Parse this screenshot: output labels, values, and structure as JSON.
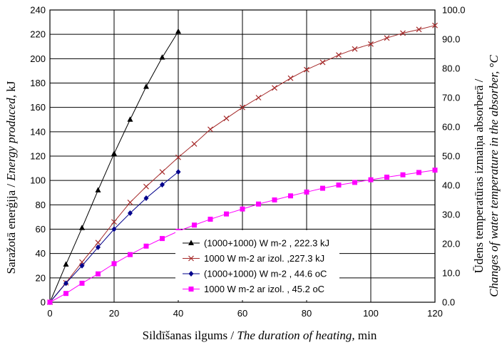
{
  "chart_data": {
    "type": "line",
    "xlabel": {
      "lv": "Sildīšanas ilgums / ",
      "en": "The duration of heating,",
      "unit": " min"
    },
    "ylabel_left": {
      "lv": "Saražotā enerģija / ",
      "en": "Energy produced,",
      "unit": " kJ"
    },
    "ylabel_right": {
      "lv": "Ūdens temperatūras izmaiņa absorberā /",
      "en": "Changes of water temperature in the absorber, °C"
    },
    "xlim": [
      0,
      120
    ],
    "ylim_left": [
      0,
      240
    ],
    "ylim_right": [
      0,
      100
    ],
    "x_ticks": [
      "0",
      "20",
      "40",
      "60",
      "80",
      "100",
      "120"
    ],
    "y_left_ticks": [
      "0",
      "20",
      "40",
      "60",
      "80",
      "100",
      "120",
      "140",
      "160",
      "180",
      "200",
      "220",
      "240"
    ],
    "y_right_ticks": [
      "0.0",
      "10.0",
      "20.0",
      "30.0",
      "40.0",
      "50.0",
      "60.0",
      "70.0",
      "80.0",
      "90.0",
      "100.0"
    ],
    "grid": true,
    "legend_position": "bottom-center",
    "series": [
      {
        "name": "(1000+1000) W m-2 , 222.3 kJ",
        "axis": "left",
        "marker": "triangle",
        "color": "#000000",
        "x": [
          0,
          5,
          10,
          15,
          20,
          25,
          30,
          35,
          40
        ],
        "y": [
          0,
          31,
          61,
          92,
          122,
          150,
          177,
          201,
          222.3
        ]
      },
      {
        "name": "1000 W m-2 ar izol. ,227.3 kJ",
        "axis": "left",
        "marker": "x",
        "color": "#a52a2a",
        "x": [
          0,
          5,
          10,
          15,
          20,
          25,
          30,
          35,
          40,
          45,
          50,
          55,
          60,
          65,
          70,
          75,
          80,
          85,
          90,
          95,
          100,
          105,
          110,
          115,
          120
        ],
        "y": [
          0,
          16,
          33,
          49,
          66,
          82,
          95,
          107,
          119,
          130,
          142,
          151,
          160,
          168,
          176,
          184,
          191,
          197,
          203,
          208,
          212,
          217,
          221,
          224,
          227.3
        ]
      },
      {
        "name": "(1000+1000) W m-2 , 44.6 oC",
        "axis": "right",
        "marker": "diamond",
        "color": "#00008b",
        "x": [
          0,
          5,
          10,
          15,
          20,
          25,
          30,
          35,
          40
        ],
        "y": [
          0,
          6.5,
          12.5,
          18.8,
          25.0,
          30.5,
          35.6,
          40.2,
          44.6
        ]
      },
      {
        "name": "1000 W m-2 ar izol. , 45.2 oC",
        "axis": "right",
        "marker": "square",
        "color": "#ff00ff",
        "x": [
          0,
          5,
          10,
          15,
          20,
          25,
          30,
          35,
          40,
          45,
          50,
          55,
          60,
          65,
          70,
          75,
          80,
          85,
          90,
          95,
          100,
          105,
          110,
          115,
          120
        ],
        "y": [
          0,
          3.0,
          6.5,
          9.7,
          13.2,
          16.3,
          19.2,
          21.8,
          24.3,
          26.4,
          28.4,
          30.2,
          31.9,
          33.6,
          35.0,
          36.4,
          37.7,
          39.0,
          40.1,
          41.0,
          41.9,
          42.8,
          43.6,
          44.4,
          45.2
        ]
      }
    ]
  }
}
